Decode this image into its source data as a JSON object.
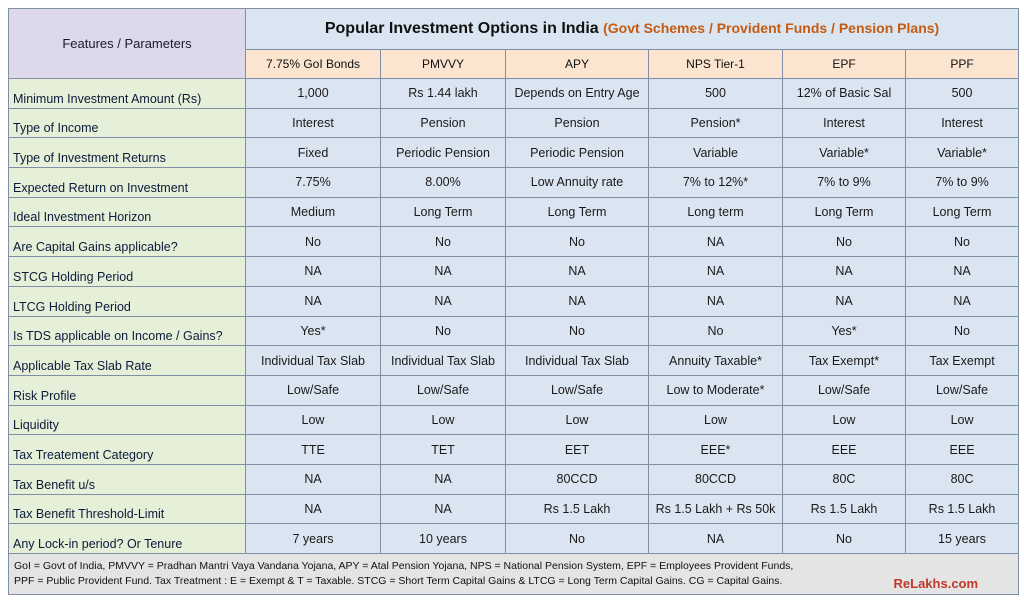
{
  "title": "Popular Investment Options in India",
  "subtitle": "(Govt Schemes / Provident Funds / Pension Plans)",
  "corner_label": "Features / Parameters",
  "columns": [
    "7.75% GoI Bonds",
    "PMVVY",
    "APY",
    "NPS Tier-1",
    "EPF",
    "PPF"
  ],
  "rows": [
    {
      "label": "Minimum Investment Amount (Rs)",
      "values": [
        "1,000",
        "Rs 1.44 lakh",
        "Depends on Entry Age",
        "500",
        "12% of Basic Sal",
        "500"
      ]
    },
    {
      "label": "Type of Income",
      "values": [
        "Interest",
        "Pension",
        "Pension",
        "Pension*",
        "Interest",
        "Interest"
      ]
    },
    {
      "label": "Type of Investment Returns",
      "values": [
        "Fixed",
        "Periodic Pension",
        "Periodic Pension",
        "Variable",
        "Variable*",
        "Variable*"
      ]
    },
    {
      "label": "Expected Return on Investment",
      "values": [
        "7.75%",
        "8.00%",
        "Low Annuity rate",
        "7% to 12%*",
        "7% to 9%",
        "7% to 9%"
      ]
    },
    {
      "label": "Ideal Investment Horizon",
      "values": [
        "Medium",
        "Long Term",
        "Long Term",
        "Long term",
        "Long Term",
        "Long Term"
      ]
    },
    {
      "label": "Are Capital Gains applicable?",
      "values": [
        "No",
        "No",
        "No",
        "NA",
        "No",
        "No"
      ]
    },
    {
      "label": "STCG Holding Period",
      "values": [
        "NA",
        "NA",
        "NA",
        "NA",
        "NA",
        "NA"
      ]
    },
    {
      "label": "LTCG Holding Period",
      "values": [
        "NA",
        "NA",
        "NA",
        "NA",
        "NA",
        "NA"
      ]
    },
    {
      "label": "Is TDS applicable on Income / Gains?",
      "values": [
        "Yes*",
        "No",
        "No",
        "No",
        "Yes*",
        "No"
      ]
    },
    {
      "label": "Applicable Tax Slab Rate",
      "values": [
        "Individual Tax Slab",
        "Individual Tax Slab",
        "Individual Tax Slab",
        "Annuity Taxable*",
        "Tax Exempt*",
        "Tax Exempt"
      ]
    },
    {
      "label": "Risk Profile",
      "values": [
        "Low/Safe",
        "Low/Safe",
        "Low/Safe",
        "Low to Moderate*",
        "Low/Safe",
        "Low/Safe"
      ]
    },
    {
      "label": "Liquidity",
      "values": [
        "Low",
        "Low",
        "Low",
        "Low",
        "Low",
        "Low"
      ]
    },
    {
      "label": "Tax Treatement Category",
      "values": [
        "TTE",
        "TET",
        "EET",
        "EEE*",
        "EEE",
        "EEE"
      ]
    },
    {
      "label": "Tax Benefit u/s",
      "values": [
        "NA",
        "NA",
        "80CCD",
        "80CCD",
        "80C",
        "80C"
      ]
    },
    {
      "label": "Tax Benefit Threshold-Limit",
      "values": [
        "NA",
        "NA",
        "Rs 1.5 Lakh",
        "Rs 1.5 Lakh + Rs 50k",
        "Rs 1.5 Lakh",
        "Rs 1.5 Lakh"
      ]
    },
    {
      "label": "Any Lock-in period? Or Tenure",
      "values": [
        "7 years",
        "10 years",
        "No",
        "NA",
        "No",
        "15 years"
      ]
    }
  ],
  "footnote_1": "GoI = Govt of India, PMVVY = Pradhan Mantri Vaya Vandana Yojana, APY = Atal Pension Yojana, NPS = National Pension System, EPF = Employees Provident Funds,",
  "footnote_2": "PPF = Public Provident Fund. Tax Treatment : E = Exempt & T = Taxable. STCG = Short Term Capital Gains & LTCG = Long Term Capital Gains. CG = Capital Gains.",
  "brand": "ReLakhs.com",
  "colors": {
    "corner": "#ddd8ea",
    "title_bg": "#d9e6f2",
    "subtitle": "#c65a11",
    "column_header": "#fbe5d0",
    "row_label": "#e6efd8",
    "cell": "#dbe5f1",
    "footer": "#e4e4e4",
    "brand": "#c0392b"
  }
}
